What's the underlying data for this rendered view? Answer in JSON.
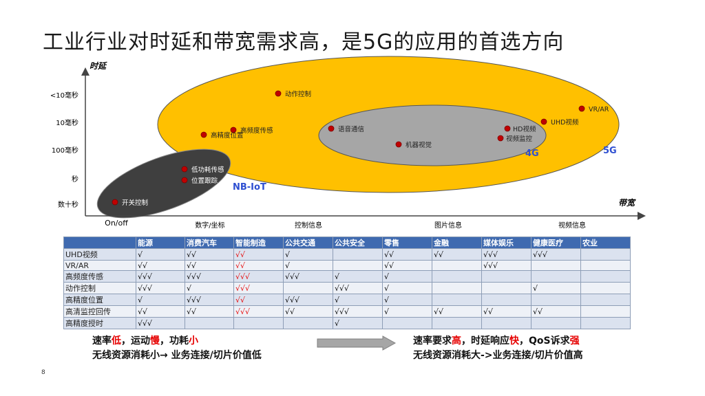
{
  "page": {
    "title": "工业行业对时延和带宽需求高，是5G的应用的首选方向",
    "page_number": "8"
  },
  "chart_data": {
    "type": "scatter",
    "xlabel": "带宽",
    "ylabel": "时延",
    "x_ticks": [
      "On/off",
      "数字/坐标",
      "控制信息",
      "图片信息",
      "视频信息"
    ],
    "y_ticks": [
      "<10毫秒",
      "10毫秒",
      "100毫秒",
      "秒",
      "数十秒"
    ],
    "groups": [
      {
        "name": "5G",
        "color": "#ffc000"
      },
      {
        "name": "4G",
        "color": "#a6a6a6"
      },
      {
        "name": "NB-IoT",
        "color": "#3f3f3f"
      }
    ],
    "points": [
      {
        "label": "动作控制",
        "x": "控制信息",
        "y": "<10毫秒"
      },
      {
        "label": "VR/AR",
        "x": "视频信息",
        "y": "<10毫秒"
      },
      {
        "label": "UHD视频",
        "x": "视频信息",
        "y": "10毫秒"
      },
      {
        "label": "高频度传感",
        "x": "数字/坐标",
        "y": "10毫秒"
      },
      {
        "label": "高精度位置",
        "x": "数字/坐标",
        "y": "10毫秒"
      },
      {
        "label": "语音通信",
        "x": "控制信息",
        "y": "10毫秒"
      },
      {
        "label": "HD视频",
        "x": "视频信息",
        "y": "10毫秒"
      },
      {
        "label": "视频监控",
        "x": "视频信息",
        "y": "100毫秒"
      },
      {
        "label": "机器视觉",
        "x": "图片信息",
        "y": "100毫秒"
      },
      {
        "label": "低功耗传感",
        "x": "数字/坐标",
        "y": "秒"
      },
      {
        "label": "位置跟踪",
        "x": "数字/坐标",
        "y": "秒"
      },
      {
        "label": "开关控制",
        "x": "On/off",
        "y": "数十秒"
      }
    ],
    "point_color": "#c00000"
  },
  "table": {
    "headers": [
      "",
      "能源",
      "消费汽车",
      "智能制造",
      "公共交通",
      "公共安全",
      "零售",
      "金融",
      "媒体娱乐",
      "健康医疗",
      "农业"
    ],
    "rows": [
      {
        "name": "UHD视频",
        "cells": [
          "√",
          "√√",
          "√√",
          "√",
          "",
          "√√",
          "√√",
          "√√√",
          "√√√",
          ""
        ]
      },
      {
        "name": "VR/AR",
        "cells": [
          "√√",
          "√√",
          "√√",
          "√",
          "",
          "√√",
          "",
          "√√√",
          "",
          ""
        ]
      },
      {
        "name": "高频度传感",
        "cells": [
          "√√√",
          "√√√",
          "√√√",
          "√√√",
          "√",
          "√",
          "",
          "",
          "",
          ""
        ]
      },
      {
        "name": "动作控制",
        "cells": [
          "√√√",
          "√",
          "√√√",
          "",
          "√√√",
          "√",
          "",
          "",
          "√",
          ""
        ]
      },
      {
        "name": "高精度位置",
        "cells": [
          "√",
          "√√√",
          "√√",
          "√√√",
          "√",
          "√",
          "",
          "",
          "",
          ""
        ]
      },
      {
        "name": "高清监控回传",
        "cells": [
          "√√",
          "√√",
          "√√√",
          "√√",
          "√√√",
          "√",
          "√√",
          "√√",
          "√√",
          ""
        ]
      },
      {
        "name": "高精度授时",
        "cells": [
          "√√√",
          "",
          "",
          "",
          "√",
          "",
          "",
          "",
          "",
          ""
        ]
      }
    ]
  },
  "compare": {
    "left_1a": "速率",
    "left_1b": "低",
    "left_1c": "，运动",
    "left_1d": "慢",
    "left_1e": "，功耗",
    "left_1f": "小",
    "left_2": "无线资源消耗小→ 业务连接/切片价值低",
    "right_1a": "速率要求",
    "right_1b": "高",
    "right_1c": "，时延响应",
    "right_1d": "快",
    "right_1e": "，QoS诉求",
    "right_1f": "强",
    "right_2": "无线资源消耗大->业务连接/切片价值高"
  },
  "colors": {
    "highlight_red": "#e60000",
    "header_blue": "#3f6ab0",
    "group_label_blue": "#2e4fd1"
  }
}
